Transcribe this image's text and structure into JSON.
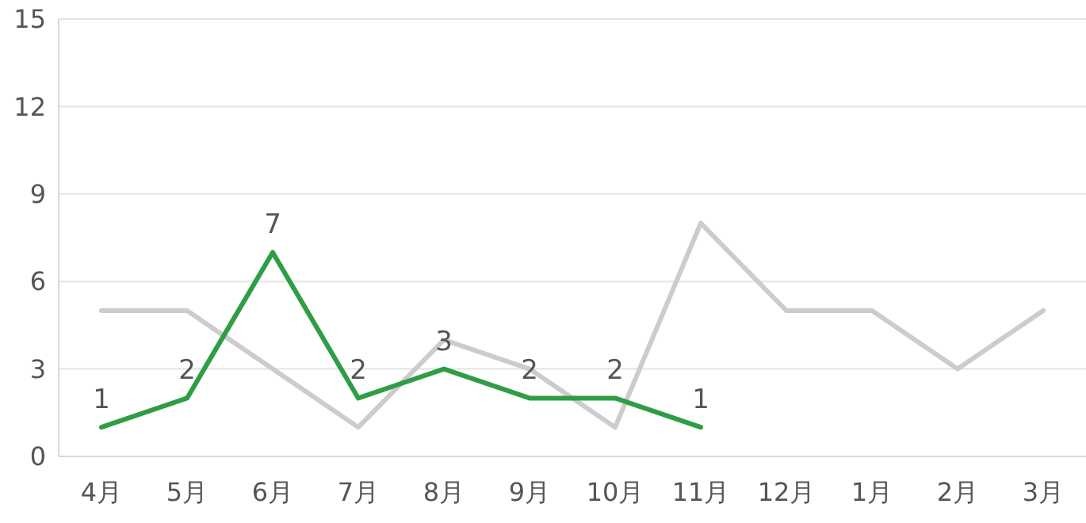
{
  "chart_data": {
    "type": "line",
    "categories": [
      "4月",
      "5月",
      "6月",
      "7月",
      "8月",
      "9月",
      "10月",
      "11月",
      "12月",
      "1月",
      "2月",
      "3月"
    ],
    "series": [
      {
        "color": "#cccccc",
        "values": [
          5,
          5,
          3,
          1,
          4,
          3,
          1,
          8,
          5,
          5,
          3,
          5
        ]
      },
      {
        "color": "#2e9e44",
        "values": [
          1,
          2,
          7,
          2,
          3,
          2,
          2,
          1,
          null,
          null,
          null,
          null
        ],
        "value_labels": [
          "1",
          "2",
          "7",
          "2",
          "3",
          "2",
          "2",
          "1",
          null,
          null,
          null,
          null
        ]
      }
    ],
    "ylim": [
      0,
      15
    ],
    "yticks": [
      0,
      3,
      6,
      9,
      12,
      15
    ],
    "grid": "y",
    "marker": "none",
    "line_style": "solid"
  }
}
